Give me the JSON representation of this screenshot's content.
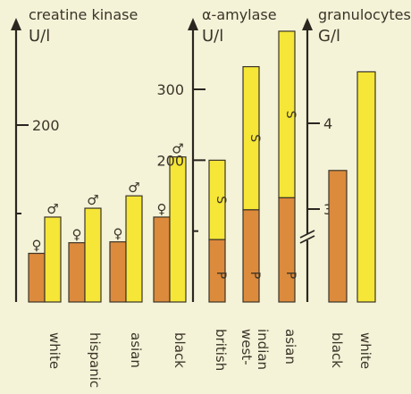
{
  "chart_data": [
    {
      "type": "bar",
      "title": "creatine kinase",
      "unit": "U/l",
      "categories": [
        "white",
        "hispanic",
        "asian",
        "black"
      ],
      "series": [
        {
          "name": "♀",
          "values": [
            55,
            67,
            68,
            96
          ]
        },
        {
          "name": "♂",
          "values": [
            96,
            106,
            120,
            164
          ]
        }
      ],
      "yticks": [
        200
      ],
      "ylim": [
        0,
        308
      ]
    },
    {
      "type": "bar",
      "title": "α-amylase",
      "unit": "U/l",
      "categories": [
        "british",
        "west-indian",
        "asian"
      ],
      "segments": [
        "P",
        "S"
      ],
      "series": [
        {
          "name": "P",
          "values": [
            88,
            130,
            147
          ]
        },
        {
          "name": "S",
          "values": [
            112,
            202,
            235
          ]
        }
      ],
      "yticks": [
        200,
        300
      ],
      "ylim": [
        0,
        400
      ]
    },
    {
      "type": "bar",
      "title": "granulocytes",
      "unit": "G/l",
      "categories": [
        "black",
        "white"
      ],
      "values": [
        3.45,
        4.6
      ],
      "yticks": [
        3,
        4
      ],
      "ylim": [
        0,
        5
      ],
      "axis_break": true
    }
  ],
  "colors": {
    "orange": "#dc8a3c",
    "yellow": "#f5e637",
    "background": "#f4f3d8",
    "ink": "#2b2620"
  }
}
